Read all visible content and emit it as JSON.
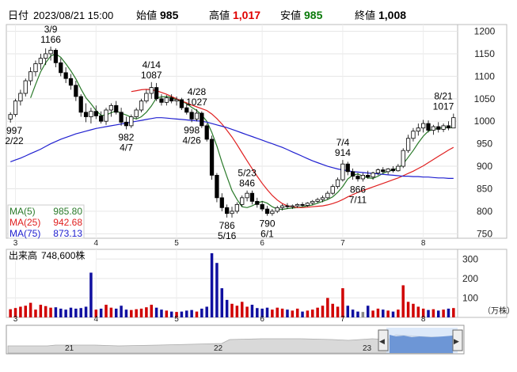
{
  "header": {
    "date_label": "日付",
    "datetime": "2023/08/21 15:00",
    "open_label": "始値",
    "open_value": "985",
    "high_label": "高値",
    "high_value": "1,017",
    "low_label": "安値",
    "low_value": "985",
    "close_label": "終値",
    "close_value": "1,008"
  },
  "colors": {
    "up": "#e00000",
    "down": "#0000b0",
    "ma5": "#2a7a2a",
    "ma25": "#e02020",
    "ma75": "#2020d0",
    "volume_down": "#1010a0",
    "volume_up": "#d00000",
    "volume_flat": "#888888"
  },
  "legend": {
    "ma5_label": "MA(5)",
    "ma5_value": "985.80",
    "ma25_label": "MA(25)",
    "ma25_value": "942.68",
    "ma75_label": "MA(75)",
    "ma75_value": "873.13"
  },
  "volume": {
    "label": "出来高",
    "value": "748,600株",
    "unit": "（万株）"
  },
  "annotations": [
    {
      "date": "3/9",
      "value": "1166"
    },
    {
      "date": "2/22",
      "value": "997"
    },
    {
      "date": "4/7",
      "value": "982"
    },
    {
      "date": "4/14",
      "value": "1087"
    },
    {
      "date": "4/26",
      "value": "998"
    },
    {
      "date": "4/28",
      "value": "1027"
    },
    {
      "date": "5/16",
      "value": "786"
    },
    {
      "date": "5/23",
      "value": "846"
    },
    {
      "date": "6/1",
      "value": "790"
    },
    {
      "date": "7/4",
      "value": "914"
    },
    {
      "date": "7/11",
      "value": "866"
    },
    {
      "date": "8/21",
      "value": "1017"
    }
  ],
  "navigator": {
    "labels": [
      "21",
      "22",
      "23"
    ],
    "left_handle": "◀",
    "right_handle": "▶"
  },
  "chart_data": {
    "type": "candlestick",
    "title": "",
    "x_tick_labels": [
      "3",
      "4",
      "5",
      "6",
      "7",
      "8"
    ],
    "price_axis": {
      "ticks": [
        750,
        800,
        850,
        900,
        950,
        1000,
        1050,
        1100,
        1150,
        1200
      ],
      "ylim": [
        740,
        1215
      ]
    },
    "volume_axis": {
      "ticks": [
        100,
        200,
        300
      ],
      "ylim": [
        0,
        350
      ],
      "unit": "万株"
    },
    "candles": [
      {
        "o": 1005,
        "h": 1020,
        "l": 997,
        "c": 1015
      },
      {
        "o": 1015,
        "h": 1050,
        "l": 1010,
        "c": 1045
      },
      {
        "o": 1045,
        "h": 1070,
        "l": 1035,
        "c": 1062
      },
      {
        "o": 1062,
        "h": 1095,
        "l": 1055,
        "c": 1090
      },
      {
        "o": 1090,
        "h": 1120,
        "l": 1080,
        "c": 1110
      },
      {
        "o": 1110,
        "h": 1135,
        "l": 1100,
        "c": 1128
      },
      {
        "o": 1128,
        "h": 1150,
        "l": 1115,
        "c": 1140
      },
      {
        "o": 1140,
        "h": 1162,
        "l": 1125,
        "c": 1150
      },
      {
        "o": 1150,
        "h": 1166,
        "l": 1135,
        "c": 1158
      },
      {
        "o": 1158,
        "h": 1162,
        "l": 1120,
        "c": 1130
      },
      {
        "o": 1130,
        "h": 1140,
        "l": 1100,
        "c": 1108
      },
      {
        "o": 1108,
        "h": 1120,
        "l": 1085,
        "c": 1095
      },
      {
        "o": 1095,
        "h": 1105,
        "l": 1070,
        "c": 1080
      },
      {
        "o": 1080,
        "h": 1090,
        "l": 1045,
        "c": 1055
      },
      {
        "o": 1055,
        "h": 1060,
        "l": 1010,
        "c": 1020
      },
      {
        "o": 1020,
        "h": 1040,
        "l": 998,
        "c": 1010
      },
      {
        "o": 1010,
        "h": 1030,
        "l": 995,
        "c": 1022
      },
      {
        "o": 1022,
        "h": 1035,
        "l": 1005,
        "c": 1012
      },
      {
        "o": 1012,
        "h": 1022,
        "l": 995,
        "c": 1000
      },
      {
        "o": 1000,
        "h": 1030,
        "l": 992,
        "c": 1025
      },
      {
        "o": 1025,
        "h": 1040,
        "l": 1010,
        "c": 1035
      },
      {
        "o": 1035,
        "h": 1045,
        "l": 1015,
        "c": 1020
      },
      {
        "o": 1020,
        "h": 1030,
        "l": 990,
        "c": 998
      },
      {
        "o": 998,
        "h": 1010,
        "l": 982,
        "c": 990
      },
      {
        "o": 990,
        "h": 1015,
        "l": 985,
        "c": 1010
      },
      {
        "o": 1010,
        "h": 1030,
        "l": 1005,
        "c": 1025
      },
      {
        "o": 1025,
        "h": 1050,
        "l": 1020,
        "c": 1045
      },
      {
        "o": 1045,
        "h": 1070,
        "l": 1040,
        "c": 1062
      },
      {
        "o": 1062,
        "h": 1087,
        "l": 1050,
        "c": 1075
      },
      {
        "o": 1075,
        "h": 1085,
        "l": 1045,
        "c": 1050
      },
      {
        "o": 1050,
        "h": 1060,
        "l": 1035,
        "c": 1042
      },
      {
        "o": 1042,
        "h": 1058,
        "l": 1035,
        "c": 1052
      },
      {
        "o": 1052,
        "h": 1060,
        "l": 1040,
        "c": 1045
      },
      {
        "o": 1045,
        "h": 1055,
        "l": 1035,
        "c": 1048
      },
      {
        "o": 1048,
        "h": 1052,
        "l": 1025,
        "c": 1030
      },
      {
        "o": 1030,
        "h": 1040,
        "l": 1015,
        "c": 1020
      },
      {
        "o": 1020,
        "h": 1027,
        "l": 998,
        "c": 1005
      },
      {
        "o": 1005,
        "h": 1027,
        "l": 1000,
        "c": 1018
      },
      {
        "o": 1018,
        "h": 1022,
        "l": 985,
        "c": 990
      },
      {
        "o": 990,
        "h": 995,
        "l": 955,
        "c": 960
      },
      {
        "o": 960,
        "h": 968,
        "l": 870,
        "c": 880
      },
      {
        "o": 880,
        "h": 885,
        "l": 820,
        "c": 830
      },
      {
        "o": 830,
        "h": 840,
        "l": 800,
        "c": 808
      },
      {
        "o": 808,
        "h": 815,
        "l": 786,
        "c": 795
      },
      {
        "o": 795,
        "h": 810,
        "l": 786,
        "c": 800
      },
      {
        "o": 800,
        "h": 820,
        "l": 795,
        "c": 815
      },
      {
        "o": 815,
        "h": 835,
        "l": 810,
        "c": 830
      },
      {
        "o": 830,
        "h": 846,
        "l": 822,
        "c": 840
      },
      {
        "o": 840,
        "h": 846,
        "l": 815,
        "c": 822
      },
      {
        "o": 822,
        "h": 830,
        "l": 808,
        "c": 815
      },
      {
        "o": 815,
        "h": 822,
        "l": 800,
        "c": 805
      },
      {
        "o": 805,
        "h": 812,
        "l": 790,
        "c": 795
      },
      {
        "o": 795,
        "h": 805,
        "l": 790,
        "c": 800
      },
      {
        "o": 800,
        "h": 812,
        "l": 796,
        "c": 808
      },
      {
        "o": 808,
        "h": 816,
        "l": 802,
        "c": 812
      },
      {
        "o": 812,
        "h": 818,
        "l": 805,
        "c": 810
      },
      {
        "o": 810,
        "h": 815,
        "l": 805,
        "c": 812
      },
      {
        "o": 812,
        "h": 818,
        "l": 808,
        "c": 815
      },
      {
        "o": 815,
        "h": 820,
        "l": 810,
        "c": 813
      },
      {
        "o": 813,
        "h": 820,
        "l": 810,
        "c": 818
      },
      {
        "o": 818,
        "h": 825,
        "l": 814,
        "c": 822
      },
      {
        "o": 822,
        "h": 830,
        "l": 818,
        "c": 826
      },
      {
        "o": 826,
        "h": 835,
        "l": 820,
        "c": 830
      },
      {
        "o": 830,
        "h": 845,
        "l": 826,
        "c": 840
      },
      {
        "o": 840,
        "h": 860,
        "l": 836,
        "c": 855
      },
      {
        "o": 855,
        "h": 875,
        "l": 850,
        "c": 870
      },
      {
        "o": 870,
        "h": 914,
        "l": 866,
        "c": 905
      },
      {
        "o": 905,
        "h": 910,
        "l": 880,
        "c": 888
      },
      {
        "o": 888,
        "h": 895,
        "l": 870,
        "c": 878
      },
      {
        "o": 878,
        "h": 885,
        "l": 866,
        "c": 872
      },
      {
        "o": 872,
        "h": 885,
        "l": 866,
        "c": 880
      },
      {
        "o": 880,
        "h": 890,
        "l": 872,
        "c": 876
      },
      {
        "o": 876,
        "h": 888,
        "l": 870,
        "c": 885
      },
      {
        "o": 885,
        "h": 895,
        "l": 880,
        "c": 892
      },
      {
        "o": 892,
        "h": 898,
        "l": 884,
        "c": 888
      },
      {
        "o": 888,
        "h": 896,
        "l": 882,
        "c": 894
      },
      {
        "o": 894,
        "h": 900,
        "l": 886,
        "c": 890
      },
      {
        "o": 890,
        "h": 905,
        "l": 888,
        "c": 900
      },
      {
        "o": 900,
        "h": 940,
        "l": 896,
        "c": 935
      },
      {
        "o": 935,
        "h": 970,
        "l": 930,
        "c": 962
      },
      {
        "o": 962,
        "h": 985,
        "l": 955,
        "c": 978
      },
      {
        "o": 978,
        "h": 995,
        "l": 968,
        "c": 985
      },
      {
        "o": 985,
        "h": 1003,
        "l": 975,
        "c": 995
      },
      {
        "o": 995,
        "h": 1002,
        "l": 975,
        "c": 980
      },
      {
        "o": 980,
        "h": 992,
        "l": 970,
        "c": 988
      },
      {
        "o": 988,
        "h": 998,
        "l": 975,
        "c": 982
      },
      {
        "o": 982,
        "h": 995,
        "l": 976,
        "c": 990
      },
      {
        "o": 990,
        "h": 1000,
        "l": 980,
        "c": 985
      },
      {
        "o": 985,
        "h": 1017,
        "l": 985,
        "c": 1008
      }
    ],
    "volume": [
      {
        "v": 42,
        "d": "up"
      },
      {
        "v": 48,
        "d": "up"
      },
      {
        "v": 55,
        "d": "up"
      },
      {
        "v": 60,
        "d": "up"
      },
      {
        "v": 75,
        "d": "up"
      },
      {
        "v": 40,
        "d": "up"
      },
      {
        "v": 65,
        "d": "up"
      },
      {
        "v": 58,
        "d": "up"
      },
      {
        "v": 50,
        "d": "up"
      },
      {
        "v": 52,
        "d": "down"
      },
      {
        "v": 45,
        "d": "down"
      },
      {
        "v": 40,
        "d": "down"
      },
      {
        "v": 50,
        "d": "down"
      },
      {
        "v": 45,
        "d": "down"
      },
      {
        "v": 48,
        "d": "down"
      },
      {
        "v": 55,
        "d": "down"
      },
      {
        "v": 230,
        "d": "down"
      },
      {
        "v": 40,
        "d": "up"
      },
      {
        "v": 45,
        "d": "down"
      },
      {
        "v": 65,
        "d": "up"
      },
      {
        "v": 50,
        "d": "up"
      },
      {
        "v": 45,
        "d": "down"
      },
      {
        "v": 60,
        "d": "down"
      },
      {
        "v": 40,
        "d": "down"
      },
      {
        "v": 38,
        "d": "up"
      },
      {
        "v": 42,
        "d": "up"
      },
      {
        "v": 45,
        "d": "up"
      },
      {
        "v": 52,
        "d": "up"
      },
      {
        "v": 65,
        "d": "up"
      },
      {
        "v": 50,
        "d": "down"
      },
      {
        "v": 40,
        "d": "down"
      },
      {
        "v": 35,
        "d": "up"
      },
      {
        "v": 30,
        "d": "down"
      },
      {
        "v": 28,
        "d": "up"
      },
      {
        "v": 30,
        "d": "down"
      },
      {
        "v": 35,
        "d": "down"
      },
      {
        "v": 38,
        "d": "down"
      },
      {
        "v": 30,
        "d": "up"
      },
      {
        "v": 45,
        "d": "down"
      },
      {
        "v": 55,
        "d": "down"
      },
      {
        "v": 330,
        "d": "down"
      },
      {
        "v": 280,
        "d": "down"
      },
      {
        "v": 150,
        "d": "down"
      },
      {
        "v": 90,
        "d": "down"
      },
      {
        "v": 70,
        "d": "up"
      },
      {
        "v": 60,
        "d": "up"
      },
      {
        "v": 80,
        "d": "up"
      },
      {
        "v": 55,
        "d": "up"
      },
      {
        "v": 65,
        "d": "down"
      },
      {
        "v": 48,
        "d": "down"
      },
      {
        "v": 45,
        "d": "down"
      },
      {
        "v": 50,
        "d": "down"
      },
      {
        "v": 40,
        "d": "up"
      },
      {
        "v": 50,
        "d": "up"
      },
      {
        "v": 45,
        "d": "up"
      },
      {
        "v": 40,
        "d": "down"
      },
      {
        "v": 35,
        "d": "up"
      },
      {
        "v": 45,
        "d": "up"
      },
      {
        "v": 30,
        "d": "down"
      },
      {
        "v": 35,
        "d": "up"
      },
      {
        "v": 40,
        "d": "up"
      },
      {
        "v": 50,
        "d": "up"
      },
      {
        "v": 60,
        "d": "up"
      },
      {
        "v": 100,
        "d": "up"
      },
      {
        "v": 70,
        "d": "up"
      },
      {
        "v": 55,
        "d": "up"
      },
      {
        "v": 150,
        "d": "up"
      },
      {
        "v": 60,
        "d": "down"
      },
      {
        "v": 40,
        "d": "down"
      },
      {
        "v": 30,
        "d": "down"
      },
      {
        "v": 28,
        "d": "flat"
      },
      {
        "v": 60,
        "d": "down"
      },
      {
        "v": 35,
        "d": "up"
      },
      {
        "v": 45,
        "d": "up"
      },
      {
        "v": 40,
        "d": "down"
      },
      {
        "v": 35,
        "d": "up"
      },
      {
        "v": 30,
        "d": "down"
      },
      {
        "v": 40,
        "d": "up"
      },
      {
        "v": 165,
        "d": "up"
      },
      {
        "v": 80,
        "d": "up"
      },
      {
        "v": 70,
        "d": "up"
      },
      {
        "v": 55,
        "d": "up"
      },
      {
        "v": 45,
        "d": "up"
      },
      {
        "v": 38,
        "d": "down"
      },
      {
        "v": 42,
        "d": "up"
      },
      {
        "v": 35,
        "d": "down"
      },
      {
        "v": 40,
        "d": "up"
      },
      {
        "v": 45,
        "d": "down"
      },
      {
        "v": 48,
        "d": "up"
      }
    ],
    "series": [
      {
        "name": "MA(5)",
        "values": [
          null,
          null,
          null,
          null,
          1052,
          1082,
          1110,
          1130,
          1145,
          1150,
          1142,
          1128,
          1112,
          1094,
          1072,
          1052,
          1039,
          1024,
          1013,
          1014,
          1019,
          1023,
          1018,
          1014,
          1009,
          1005,
          1010,
          1020,
          1034,
          1052,
          1054,
          1055,
          1053,
          1048,
          1044,
          1039,
          1031,
          1024,
          1014,
          1000,
          975,
          945,
          909,
          877,
          846,
          826,
          810,
          808,
          812,
          818,
          822,
          818,
          810,
          805,
          804,
          806,
          807,
          808,
          810,
          812,
          814,
          818,
          822,
          826,
          832,
          842,
          855,
          872,
          880,
          883,
          878,
          874,
          873,
          878,
          884,
          889,
          892,
          896,
          905,
          920,
          935,
          952,
          967,
          978,
          982,
          984,
          986,
          986,
          986
        ]
      },
      {
        "name": "MA(25)",
        "values": [
          null,
          null,
          null,
          null,
          null,
          null,
          null,
          null,
          null,
          null,
          null,
          null,
          null,
          null,
          null,
          null,
          null,
          null,
          null,
          null,
          null,
          null,
          null,
          null,
          1066,
          1068,
          1070,
          1071,
          1070,
          1068,
          1064,
          1060,
          1055,
          1050,
          1045,
          1041,
          1036,
          1032,
          1028,
          1024,
          1016,
          1006,
          994,
          980,
          965,
          948,
          930,
          912,
          895,
          878,
          862,
          848,
          835,
          825,
          817,
          812,
          810,
          808,
          808,
          809,
          810,
          811,
          812,
          814,
          817,
          821,
          826,
          832,
          837,
          842,
          846,
          850,
          854,
          858,
          862,
          866,
          870,
          874,
          879,
          884,
          889,
          895,
          901,
          908,
          915,
          922,
          929,
          936,
          942
        ]
      },
      {
        "name": "MA(75)",
        "values": [
          910,
          914,
          918,
          923,
          928,
          933,
          938,
          944,
          950,
          955,
          960,
          964,
          968,
          972,
          975,
          978,
          981,
          984,
          986,
          988,
          990,
          992,
          994,
          996,
          998,
          1000,
          1002,
          1004,
          1006,
          1008,
          1008,
          1007,
          1006,
          1005,
          1004,
          1003,
          1002,
          1001,
          1000,
          998,
          995,
          992,
          989,
          986,
          982,
          978,
          974,
          970,
          966,
          962,
          958,
          954,
          950,
          946,
          942,
          937,
          932,
          927,
          922,
          917,
          912,
          908,
          904,
          900,
          897,
          894,
          892,
          890,
          888,
          887,
          886,
          885,
          884,
          883,
          882,
          881,
          880,
          879,
          878,
          878,
          877,
          877,
          876,
          876,
          875,
          874,
          874,
          873,
          873
        ]
      }
    ]
  }
}
